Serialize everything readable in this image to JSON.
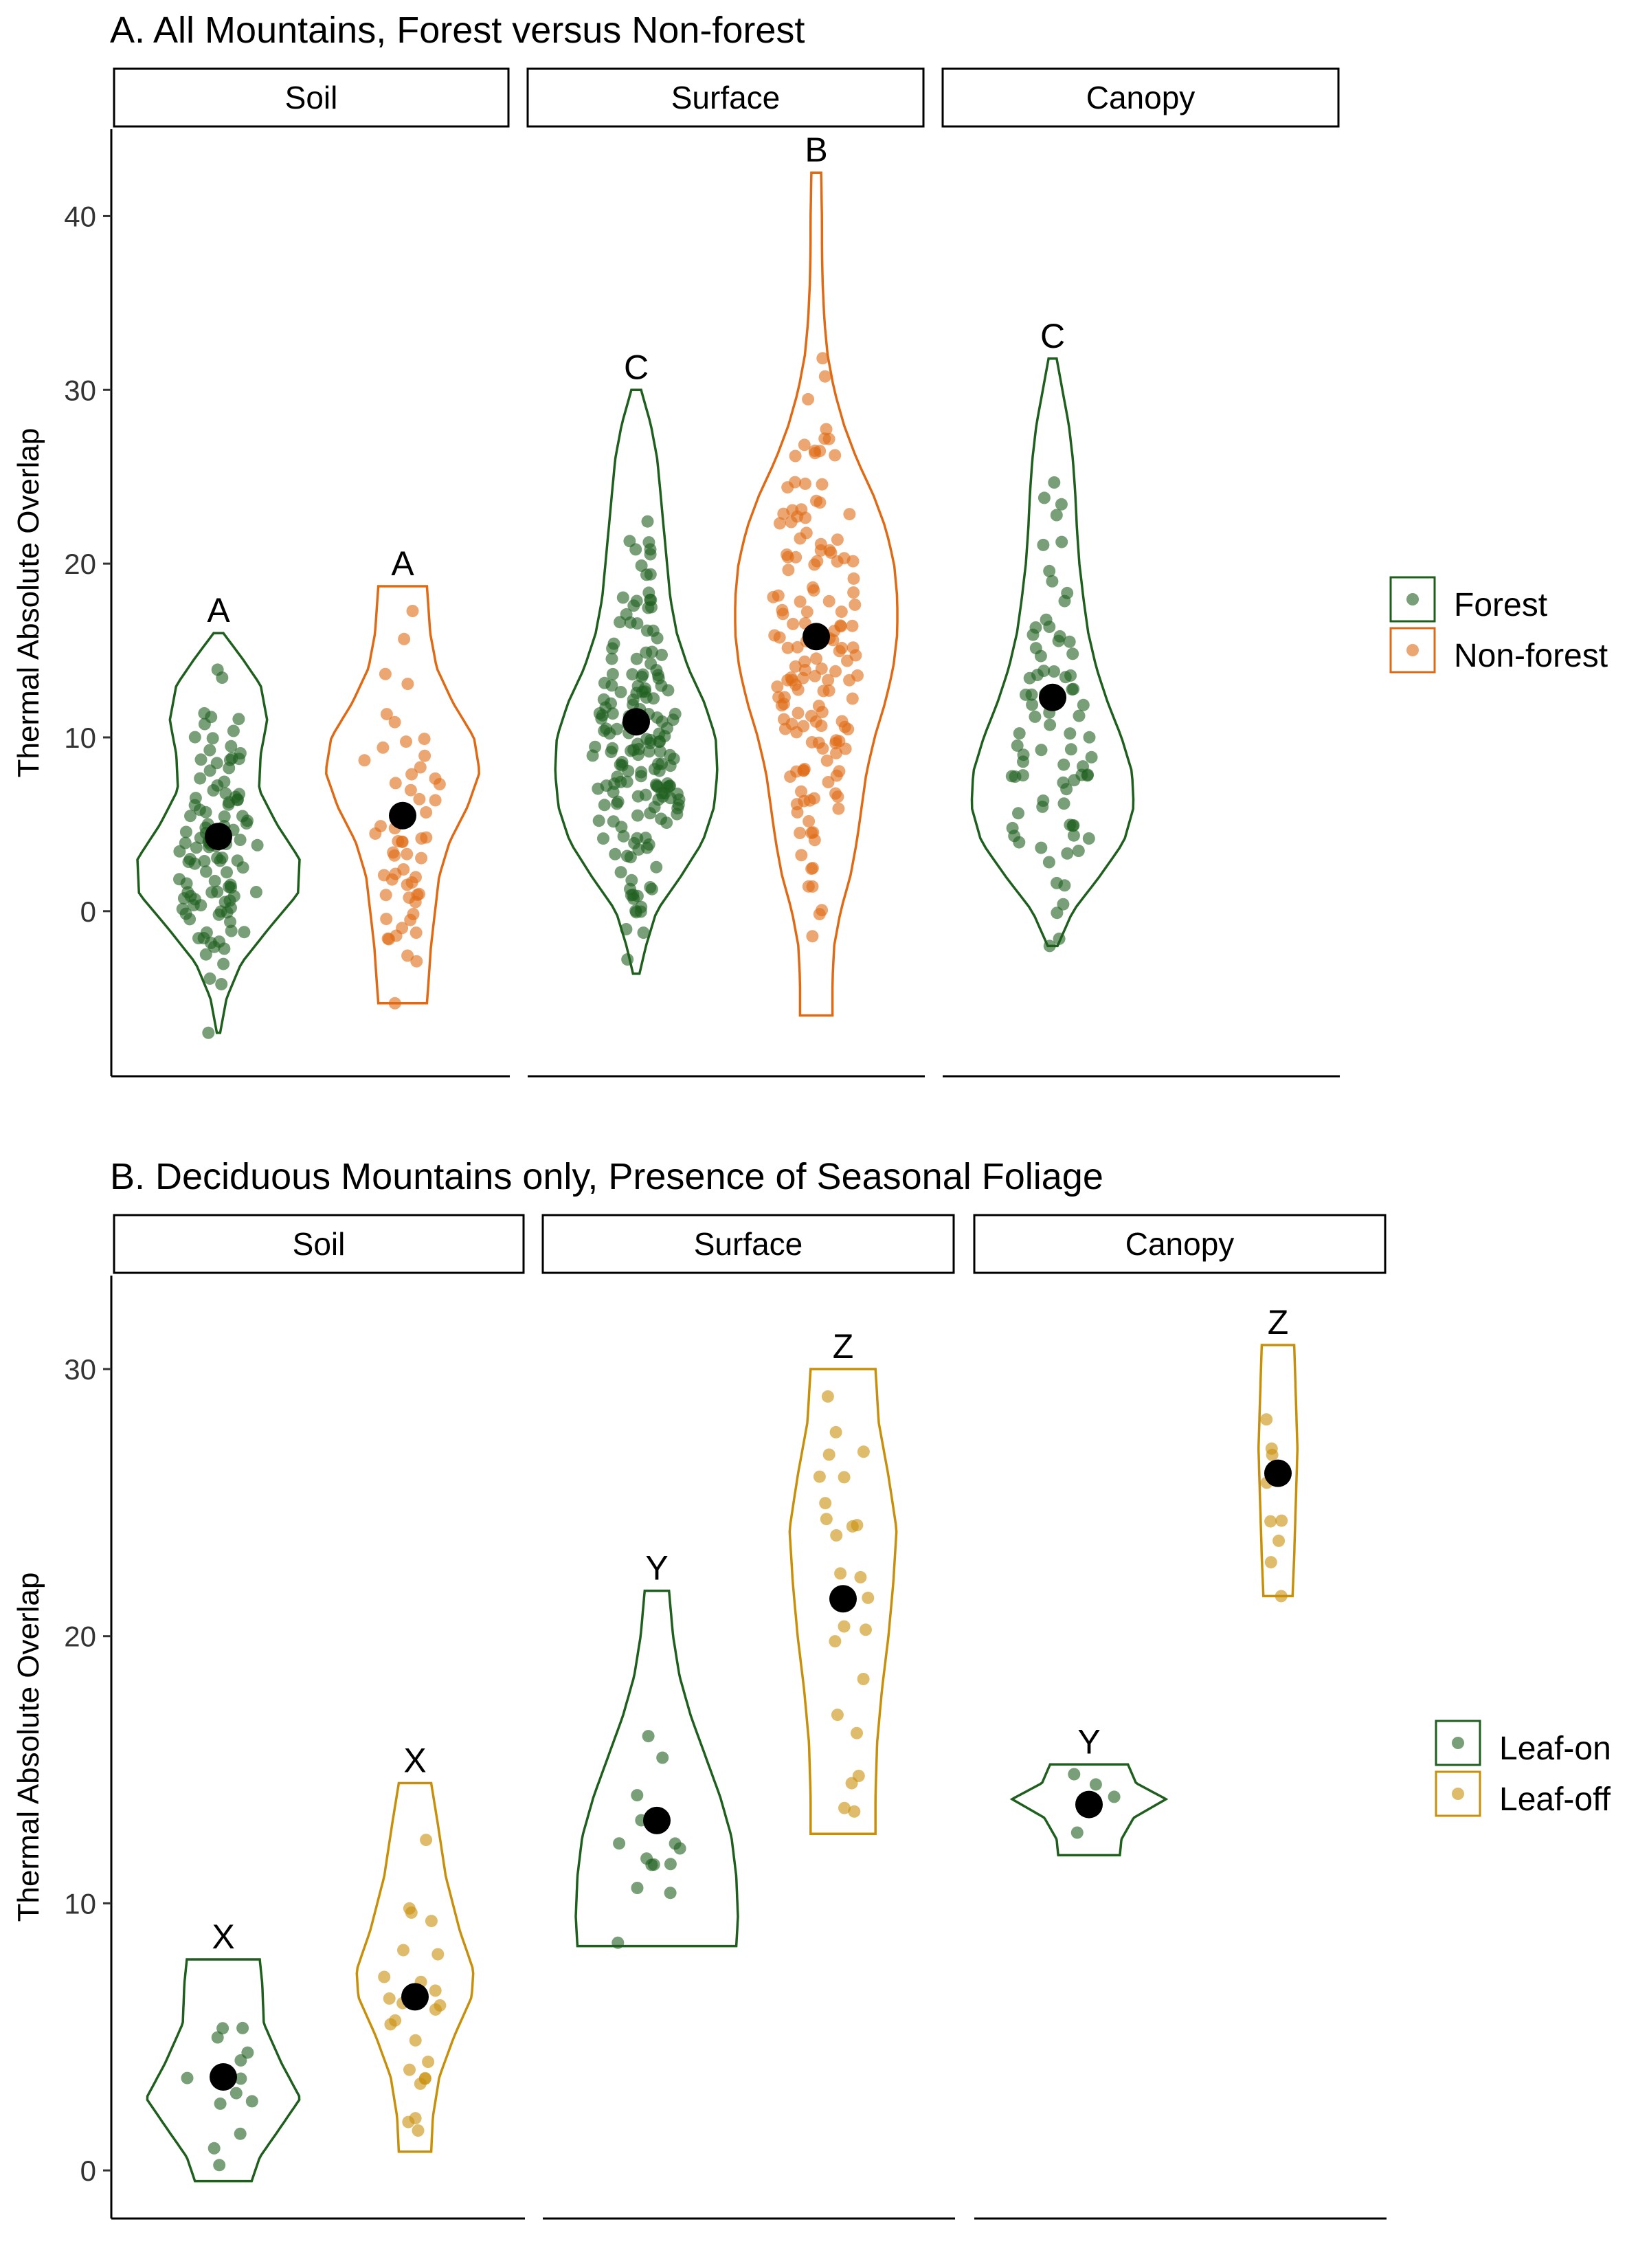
{
  "colors": {
    "forest": "#1e5f1e",
    "nonforest": "#e06a14",
    "leafon": "#1e5f1e",
    "leafoff": "#c8900a",
    "mean": "#000000"
  },
  "chart_data": [
    {
      "type": "violin",
      "title": "A. All Mountains, Forest versus Non-forest",
      "ylabel": "Thermal Absolute Overlap",
      "ylim": [
        -9.5,
        45
      ],
      "yticks": [
        0,
        10,
        20,
        30,
        40
      ],
      "facets": [
        "Soil",
        "Surface",
        "Canopy"
      ],
      "legend": {
        "position": "right",
        "items": [
          {
            "label": "Forest",
            "color": "forest"
          },
          {
            "label": "Non-forest",
            "color": "nonforest"
          }
        ]
      },
      "groups": [
        {
          "facet": "Soil",
          "series": "Forest",
          "color": "forest",
          "min": -7,
          "max": 16,
          "mean": 4.3,
          "letter": "A",
          "profile": [
            [
              -7,
              0.02
            ],
            [
              -5,
              0.1
            ],
            [
              -3,
              0.28
            ],
            [
              -1,
              0.62
            ],
            [
              1,
              0.98
            ],
            [
              3,
              1
            ],
            [
              5,
              0.72
            ],
            [
              7,
              0.5
            ],
            [
              9,
              0.52
            ],
            [
              11,
              0.6
            ],
            [
              13,
              0.52
            ],
            [
              14.5,
              0.3
            ],
            [
              16,
              0.06
            ]
          ],
          "n": 110,
          "center": 3.5,
          "spread": 5,
          "seed": 11
        },
        {
          "facet": "Soil",
          "series": "Non-forest",
          "color": "nonforest",
          "min": -5.3,
          "max": 18.7,
          "mean": 5.5,
          "letter": "A",
          "profile": [
            [
              -5.3,
              0.3
            ],
            [
              -4,
              0.32
            ],
            [
              -2,
              0.35
            ],
            [
              0,
              0.4
            ],
            [
              2,
              0.45
            ],
            [
              4,
              0.58
            ],
            [
              6,
              0.8
            ],
            [
              8,
              0.95
            ],
            [
              10,
              0.88
            ],
            [
              12,
              0.62
            ],
            [
              14,
              0.42
            ],
            [
              16,
              0.34
            ],
            [
              18.7,
              0.3
            ]
          ],
          "n": 55,
          "center": 5.5,
          "spread": 6,
          "seed": 23
        },
        {
          "facet": "Surface",
          "series": "Forest",
          "color": "forest",
          "min": -3.6,
          "max": 30,
          "mean": 10.9,
          "letter": "C",
          "profile": [
            [
              -3.6,
              0.04
            ],
            [
              -2,
              0.12
            ],
            [
              0,
              0.25
            ],
            [
              2,
              0.55
            ],
            [
              4,
              0.82
            ],
            [
              6,
              0.96
            ],
            [
              8,
              1
            ],
            [
              10,
              0.98
            ],
            [
              12,
              0.84
            ],
            [
              14,
              0.64
            ],
            [
              16,
              0.5
            ],
            [
              18,
              0.42
            ],
            [
              20,
              0.38
            ],
            [
              22,
              0.34
            ],
            [
              24,
              0.3
            ],
            [
              26,
              0.26
            ],
            [
              28,
              0.18
            ],
            [
              30,
              0.06
            ]
          ],
          "n": 170,
          "center": 10,
          "spread": 6.5,
          "seed": 37
        },
        {
          "facet": "Surface",
          "series": "Non-forest",
          "color": "nonforest",
          "min": -6,
          "max": 42.5,
          "mean": 15.8,
          "letter": "B",
          "profile": [
            [
              -6,
              0.2
            ],
            [
              -4,
              0.2
            ],
            [
              -2,
              0.22
            ],
            [
              0,
              0.3
            ],
            [
              2,
              0.42
            ],
            [
              4,
              0.5
            ],
            [
              6,
              0.56
            ],
            [
              8,
              0.62
            ],
            [
              10,
              0.72
            ],
            [
              12,
              0.85
            ],
            [
              14,
              0.95
            ],
            [
              16,
              1
            ],
            [
              18,
              1
            ],
            [
              20,
              0.96
            ],
            [
              22,
              0.86
            ],
            [
              24,
              0.7
            ],
            [
              26,
              0.5
            ],
            [
              28,
              0.34
            ],
            [
              30,
              0.22
            ],
            [
              32,
              0.14
            ],
            [
              34,
              0.1
            ],
            [
              36,
              0.08
            ],
            [
              38,
              0.07
            ],
            [
              40,
              0.07
            ],
            [
              42.5,
              0.06
            ]
          ],
          "n": 150,
          "center": 15,
          "spread": 9,
          "seed": 51
        },
        {
          "facet": "Canopy",
          "series": "Forest",
          "color": "forest",
          "min": -2,
          "max": 31.8,
          "mean": 12.3,
          "letter": "C",
          "profile": [
            [
              -2,
              0.06
            ],
            [
              0,
              0.25
            ],
            [
              2,
              0.58
            ],
            [
              4,
              0.88
            ],
            [
              6,
              1
            ],
            [
              8,
              0.98
            ],
            [
              10,
              0.85
            ],
            [
              12,
              0.68
            ],
            [
              14,
              0.54
            ],
            [
              16,
              0.44
            ],
            [
              18,
              0.38
            ],
            [
              20,
              0.33
            ],
            [
              22,
              0.3
            ],
            [
              24,
              0.28
            ],
            [
              26,
              0.25
            ],
            [
              28,
              0.2
            ],
            [
              30,
              0.12
            ],
            [
              31.8,
              0.05
            ]
          ],
          "n": 80,
          "center": 11,
          "spread": 8,
          "seed": 67
        }
      ]
    },
    {
      "type": "violin",
      "title": "B. Deciduous Mountains only, Presence of Seasonal Foliage",
      "ylabel": "Thermal Absolute Overlap",
      "ylim": [
        -1.8,
        33.5
      ],
      "yticks": [
        0,
        10,
        20,
        30
      ],
      "facets": [
        "Soil",
        "Surface",
        "Canopy"
      ],
      "legend": {
        "position": "right",
        "items": [
          {
            "label": "Leaf-on",
            "color": "leafon"
          },
          {
            "label": "Leaf-off",
            "color": "leafoff"
          }
        ]
      },
      "groups": [
        {
          "facet": "Soil",
          "series": "Leaf-on",
          "color": "leafon",
          "min": -0.4,
          "max": 7.9,
          "mean": 3.5,
          "letter": "X",
          "profile": [
            [
              -0.4,
              0.35
            ],
            [
              0.5,
              0.45
            ],
            [
              1.5,
              0.68
            ],
            [
              2.7,
              0.95
            ],
            [
              4,
              0.72
            ],
            [
              5.5,
              0.5
            ],
            [
              7,
              0.48
            ],
            [
              7.9,
              0.45
            ]
          ],
          "n": 14,
          "center": 3.5,
          "spread": 2.4,
          "seed": 3
        },
        {
          "facet": "Soil",
          "series": "Leaf-off",
          "color": "leafoff",
          "min": 0.7,
          "max": 14.5,
          "mean": 6.5,
          "letter": "X",
          "profile": [
            [
              0.7,
              0.2
            ],
            [
              2,
              0.22
            ],
            [
              3.5,
              0.3
            ],
            [
              5,
              0.48
            ],
            [
              6.5,
              0.7
            ],
            [
              7.5,
              0.72
            ],
            [
              9,
              0.55
            ],
            [
              11,
              0.38
            ],
            [
              13,
              0.28
            ],
            [
              14.5,
              0.2
            ]
          ],
          "n": 24,
          "center": 6.5,
          "spread": 3.5,
          "seed": 9
        },
        {
          "facet": "Surface",
          "series": "Leaf-on",
          "color": "leafon",
          "min": 8.4,
          "max": 21.7,
          "mean": 13.1,
          "letter": "Y",
          "profile": [
            [
              8.4,
              0.98
            ],
            [
              9.5,
              1
            ],
            [
              11,
              0.98
            ],
            [
              12.5,
              0.92
            ],
            [
              14,
              0.78
            ],
            [
              15.5,
              0.6
            ],
            [
              17,
              0.42
            ],
            [
              18.5,
              0.28
            ],
            [
              20,
              0.2
            ],
            [
              21.7,
              0.15
            ]
          ],
          "n": 14,
          "center": 13,
          "spread": 3,
          "seed": 17
        },
        {
          "facet": "Surface",
          "series": "Leaf-off",
          "color": "leafoff",
          "min": 12.6,
          "max": 30,
          "mean": 21.4,
          "letter": "Z",
          "profile": [
            [
              12.6,
              0.4
            ],
            [
              14,
              0.4
            ],
            [
              16,
              0.42
            ],
            [
              18,
              0.48
            ],
            [
              20,
              0.56
            ],
            [
              22,
              0.62
            ],
            [
              24,
              0.66
            ],
            [
              26,
              0.56
            ],
            [
              28,
              0.44
            ],
            [
              30,
              0.4
            ]
          ],
          "n": 25,
          "center": 21.5,
          "spread": 5,
          "seed": 29
        },
        {
          "facet": "Canopy",
          "series": "Leaf-on",
          "color": "leafon",
          "min": 11.8,
          "max": 15.2,
          "mean": 13.7,
          "letter": "Y",
          "profile": [
            [
              11.8,
              0.38
            ],
            [
              12.4,
              0.4
            ],
            [
              13.2,
              0.55
            ],
            [
              13.9,
              0.95
            ],
            [
              14.5,
              0.58
            ],
            [
              15.2,
              0.48
            ]
          ],
          "n": 4,
          "center": 13.6,
          "spread": 1.2,
          "seed": 41
        },
        {
          "facet": "Canopy",
          "series": "Leaf-off",
          "color": "leafoff",
          "min": 21.5,
          "max": 30.9,
          "mean": 26.1,
          "letter": "Z",
          "profile": [
            [
              21.5,
              0.18
            ],
            [
              23,
              0.2
            ],
            [
              25,
              0.22
            ],
            [
              27,
              0.24
            ],
            [
              29,
              0.22
            ],
            [
              30.9,
              0.2
            ]
          ],
          "n": 9,
          "center": 26,
          "spread": 3,
          "seed": 53
        }
      ]
    }
  ]
}
